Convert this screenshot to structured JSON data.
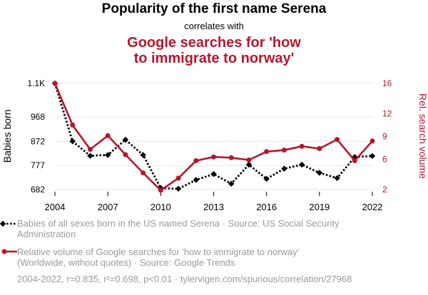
{
  "header": {
    "title": "Popularity of the first name Serena",
    "subtitle": "correlates with",
    "title2_line1": "Google searches for 'how",
    "title2_line2": "to immigrate to norway'"
  },
  "chart_data": {
    "type": "line",
    "x": [
      2004,
      2005,
      2006,
      2007,
      2008,
      2009,
      2010,
      2011,
      2012,
      2013,
      2014,
      2015,
      2016,
      2017,
      2018,
      2019,
      2020,
      2021,
      2022
    ],
    "xlim": [
      2004,
      2022
    ],
    "x_ticks": [
      "2004",
      "2007",
      "2010",
      "2013",
      "2016",
      "2019",
      "2022"
    ],
    "series": [
      {
        "name": "Babies of all sexes born in the US named Serena",
        "axis": "left",
        "color": "#000000",
        "style": "dotted",
        "values": [
          1100,
          872,
          815,
          818,
          878,
          818,
          688,
          685,
          720,
          743,
          705,
          780,
          724,
          764,
          780,
          748,
          727,
          810,
          814
        ]
      },
      {
        "name": "Relative volume of Google searches for 'how to immigrate to norway'",
        "axis": "right",
        "color": "#b5172c",
        "style": "solid",
        "values": [
          16,
          10.5,
          7.3,
          9.1,
          6.6,
          4.2,
          1.9,
          3.5,
          5.8,
          6.3,
          6.2,
          5.9,
          7.0,
          7.2,
          7.7,
          7.4,
          8.6,
          5.8,
          8.4
        ]
      }
    ],
    "left_axis": {
      "label": "Babies born",
      "ylim": [
        682,
        1100
      ],
      "ticks": [
        "682",
        "777",
        "872",
        "968",
        "1.1K"
      ],
      "tick_values": [
        682,
        777,
        872,
        968,
        1100
      ]
    },
    "right_axis": {
      "label": "Rel. search volume",
      "ylim": [
        2,
        16
      ],
      "ticks": [
        "2",
        "6",
        "9",
        "12",
        "16"
      ],
      "tick_values": [
        2,
        6,
        9,
        12,
        16
      ]
    }
  },
  "legend": {
    "item1_line1": "Babies of all sexes born in the US named Serena · Source: US Social Security",
    "item1_line2": "Administration",
    "item2_line1": "Relative volume of Google searches for 'how to immigrate to norway'",
    "item2_line2": "(Worldwide, without quotes) · Source: Google Trends"
  },
  "footer": {
    "text": "2004-2022, r=0.835, r²=0.698, p<0.01 · tylervigen.com/spurious/correlation/27968"
  }
}
